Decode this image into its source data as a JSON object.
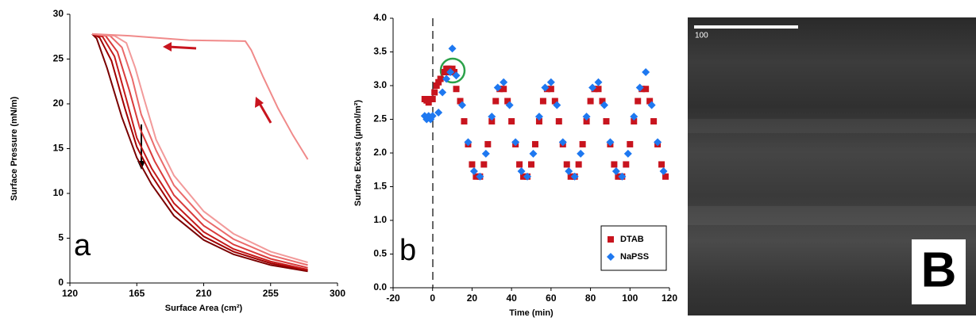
{
  "chart_data": [
    {
      "type": "line",
      "annotation": "a",
      "x_label": "Surface Area (cm²)",
      "y_label": "Surface Pressure (mN/m)",
      "xlim": [
        120,
        300
      ],
      "xticks": [
        120,
        165,
        210,
        255,
        300
      ],
      "ylim": [
        0,
        30
      ],
      "yticks": [
        0,
        5,
        10,
        15,
        20,
        25,
        30
      ],
      "grid": false,
      "series": [
        {
          "color": "#7a0000",
          "x": [
            280,
            255,
            230,
            210,
            190,
            175,
            165,
            155,
            145,
            138,
            135
          ],
          "values": [
            1.3,
            2.0,
            3.2,
            4.8,
            7.5,
            11,
            14,
            18.5,
            24,
            27.3,
            27.8
          ]
        },
        {
          "color": "#a00000",
          "x": [
            280,
            255,
            230,
            210,
            190,
            175,
            165,
            157,
            148,
            140,
            135
          ],
          "values": [
            1.4,
            2.2,
            3.5,
            5.2,
            8.2,
            12,
            15.2,
            19.5,
            24.8,
            27.4,
            27.8
          ]
        },
        {
          "color": "#c41a1a",
          "x": [
            280,
            255,
            230,
            210,
            190,
            175,
            165,
            158,
            150,
            142,
            135
          ],
          "values": [
            1.5,
            2.4,
            3.8,
            5.7,
            8.9,
            12.8,
            16.2,
            20.5,
            25.3,
            27.5,
            27.8
          ]
        },
        {
          "color": "#d93a3a",
          "x": [
            280,
            255,
            230,
            210,
            190,
            177,
            167,
            160,
            152,
            144,
            135
          ],
          "values": [
            1.7,
            2.7,
            4.3,
            6.4,
            9.8,
            13.6,
            17.3,
            21.5,
            25.8,
            27.6,
            27.8
          ]
        },
        {
          "color": "#ea6a6a",
          "x": [
            280,
            255,
            230,
            210,
            190,
            178,
            168,
            162,
            155,
            147,
            135
          ],
          "values": [
            2.0,
            3.1,
            4.9,
            7.2,
            10.9,
            14.8,
            18.8,
            22.8,
            26.3,
            27.6,
            27.8
          ]
        },
        {
          "color": "#f29a9a",
          "x": [
            280,
            255,
            230,
            210,
            190,
            178,
            170,
            164,
            158,
            150,
            135
          ],
          "values": [
            2.3,
            3.5,
            5.5,
            8.0,
            12.0,
            16.0,
            20.5,
            24.0,
            26.8,
            27.6,
            27.8
          ]
        },
        {
          "color": "#f08a8a",
          "x": [
            280,
            270,
            260,
            250,
            242,
            238,
            200,
            160,
            135
          ],
          "values": [
            13.8,
            16.5,
            19.5,
            23,
            26,
            27,
            27.1,
            27.6,
            27.8
          ]
        }
      ]
    },
    {
      "type": "scatter",
      "annotation": "b",
      "x_label": "Time (min)",
      "y_label": "Surface Excess (µmol/m²)",
      "xlim": [
        -20,
        120
      ],
      "xticks": [
        -20,
        0,
        20,
        40,
        60,
        80,
        100,
        120
      ],
      "ylim": [
        0,
        4
      ],
      "yticks": [
        {
          "value": 0,
          "label": "0.0"
        },
        0.5,
        {
          "value": 1,
          "label": "1.0"
        },
        1.5,
        {
          "value": 2,
          "label": "2.0"
        },
        2.5,
        {
          "value": 3,
          "label": "3.0"
        },
        3.5,
        {
          "value": 4,
          "label": "4.0"
        }
      ],
      "legend": "lower right",
      "series": [
        {
          "name": "DTAB",
          "color": "#c8141e",
          "marker": "square",
          "x": [
            -4,
            -3,
            -2,
            -1,
            0,
            1,
            2,
            3,
            4,
            6,
            7,
            8,
            9,
            10,
            11,
            12,
            14,
            16,
            18,
            20,
            22,
            24,
            26,
            28,
            30,
            32,
            34,
            36,
            38,
            40,
            42,
            44,
            46,
            48,
            50,
            52,
            54,
            56,
            58,
            60,
            62,
            64,
            66,
            68,
            70,
            72,
            74,
            76,
            78,
            80,
            82,
            84,
            86,
            88,
            90,
            92,
            94,
            96,
            98,
            100,
            102,
            104,
            106,
            108,
            110,
            112,
            114,
            116,
            118
          ],
          "values": [
            2.8,
            2.78,
            2.75,
            2.8,
            2.8,
            2.9,
            3.0,
            3.05,
            3.1,
            3.2,
            3.25,
            3.25,
            3.2,
            3.25,
            3.2,
            2.95,
            2.77,
            2.47,
            2.13,
            1.83,
            1.65,
            1.65,
            1.83,
            2.13,
            2.47,
            2.77,
            2.95,
            2.95,
            2.77,
            2.47,
            2.13,
            1.83,
            1.65,
            1.65,
            1.83,
            2.13,
            2.47,
            2.77,
            2.95,
            2.95,
            2.77,
            2.47,
            2.13,
            1.83,
            1.65,
            1.65,
            1.83,
            2.13,
            2.47,
            2.77,
            2.95,
            2.95,
            2.77,
            2.47,
            2.13,
            1.83,
            1.65,
            1.65,
            1.83,
            2.13,
            2.47,
            2.77,
            2.95,
            2.95,
            2.77,
            2.47,
            2.13,
            1.83,
            1.65
          ]
        },
        {
          "name": "NaPSS",
          "color": "#1e78f0",
          "marker": "diamond",
          "x": [
            -4,
            -3,
            -2,
            -1,
            0,
            3,
            5,
            7,
            9,
            10,
            12,
            15,
            18,
            21,
            24,
            27,
            30,
            33,
            36,
            39,
            42,
            45,
            48,
            51,
            54,
            57,
            60,
            63,
            66,
            69,
            72,
            75,
            78,
            81,
            84,
            87,
            90,
            93,
            96,
            99,
            102,
            105,
            108,
            111,
            114,
            117
          ],
          "values": [
            2.55,
            2.5,
            2.55,
            2.5,
            2.55,
            2.6,
            2.9,
            3.1,
            3.2,
            3.55,
            3.15,
            2.71,
            2.16,
            1.73,
            1.65,
            1.99,
            2.54,
            2.97,
            3.05,
            2.71,
            2.16,
            1.73,
            1.65,
            1.99,
            2.54,
            2.97,
            3.05,
            2.71,
            2.16,
            1.73,
            1.65,
            1.99,
            2.54,
            2.97,
            3.05,
            2.71,
            2.16,
            1.73,
            1.65,
            1.99,
            2.54,
            2.97,
            3.2,
            2.71,
            2.16,
            1.73
          ]
        }
      ]
    }
  ],
  "image": {
    "scale_label": "100",
    "label": "B"
  }
}
